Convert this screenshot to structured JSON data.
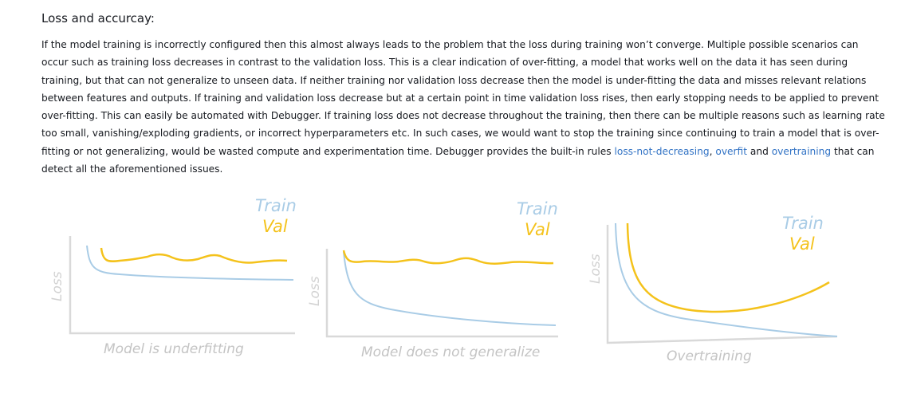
{
  "section": {
    "heading": "Loss and accurcay:",
    "paragraph_text": "If the model training is incorrectly configured then this almost always leads to the problem that the loss during training won’t converge. Multiple possible scenarios can occur such as training loss decreases in contrast to the validation loss. This is a clear indication of over-fitting, a model that works well on the data it has seen during training, but that can not generalize to unseen data. If neither training nor validation loss decrease then the model is under-fitting the data and misses relevant relations between features and outputs. If training and validation loss decrease but at a certain point in time validation loss rises, then early stopping needs to be applied to prevent over-fitting. This can easily be automated with Debugger. If training loss does not decrease throughout the training, then there can be multiple reasons such as learning rate too small, vanishing/exploding gradients, or incorrect hyperparameters etc. In such cases, we would want to stop the training since continuing to train a model that is over-fitting or not generalizing, would be wasted compute and experimentation time. Debugger provides the built-in rules ",
    "link_1": "loss-not-decreasing",
    "sep_1": ", ",
    "link_2": "overfit",
    "sep_2": " and ",
    "link_3": "overtraining",
    "paragraph_end": " that can detect all the aforementioned issues."
  },
  "figures": [
    {
      "train_label": "Train",
      "val_label": "Val",
      "y_label": "Loss",
      "caption": "Model is underfitting"
    },
    {
      "train_label": "Train",
      "val_label": "Val",
      "y_label": "Loss",
      "caption": "Model does not generalize"
    },
    {
      "train_label": "Train",
      "val_label": "Val",
      "y_label": "Loss",
      "caption": "Overtraining"
    }
  ],
  "colors": {
    "train": "#a9cce6",
    "val": "#f4c21b",
    "link": "#3273c5",
    "axis": "#d9d9d9"
  }
}
